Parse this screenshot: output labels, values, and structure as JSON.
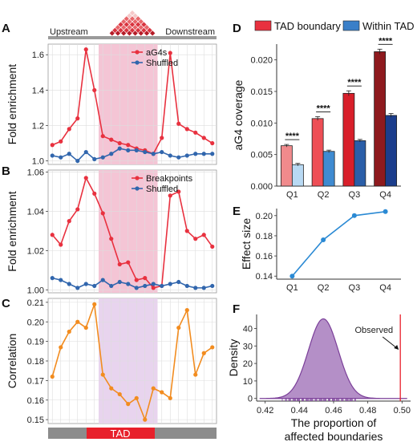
{
  "colors": {
    "red": "#e8313f",
    "blue": "#3166ad",
    "orange": "#f28c1f",
    "pink_band": "#f4c5d5",
    "purple_band": "#e8d4ee",
    "grid": "#dddddd",
    "tad_red": "#e8202b",
    "tad_gray": "#8c8c8c",
    "density_fill": "#a77bbd",
    "density_line": "#7b3f99"
  },
  "header": {
    "upstream": "Upstream",
    "downstream": "Downstream",
    "tad_label": "TAD"
  },
  "chart_data": [
    {
      "panel": "A",
      "type": "line",
      "ylabel": "Fold enrichment",
      "ylim": [
        0.98,
        1.66
      ],
      "yticks": [
        "1.0",
        "1.2",
        "1.4",
        "1.6"
      ],
      "ytick_values": [
        1.0,
        1.2,
        1.4,
        1.6
      ],
      "x": [
        1,
        2,
        3,
        4,
        5,
        6,
        7,
        8,
        9,
        10,
        11,
        12,
        13,
        14,
        15,
        16,
        17,
        18,
        19,
        20
      ],
      "shaded_x": [
        6.5,
        13.5
      ],
      "legend_position": "top-right",
      "series": [
        {
          "name": "aG4s",
          "color": "#e8313f",
          "values": [
            1.09,
            1.11,
            1.18,
            1.24,
            1.63,
            1.4,
            1.14,
            1.12,
            1.1,
            1.09,
            1.07,
            1.06,
            1.04,
            1.13,
            1.61,
            1.21,
            1.18,
            1.16,
            1.13,
            1.1
          ]
        },
        {
          "name": "Shuffled",
          "color": "#3166ad",
          "values": [
            1.03,
            1.02,
            1.04,
            1.0,
            1.05,
            1.01,
            1.02,
            1.04,
            1.07,
            1.06,
            1.06,
            1.05,
            1.04,
            1.05,
            1.03,
            1.02,
            1.03,
            1.04,
            1.04,
            1.04
          ]
        }
      ]
    },
    {
      "panel": "B",
      "type": "line",
      "ylabel": "Fold enrichment",
      "ylim": [
        0.9985,
        1.061
      ],
      "yticks": [
        "1.00",
        "1.02",
        "1.04",
        "1.06"
      ],
      "ytick_values": [
        1.0,
        1.02,
        1.04,
        1.06
      ],
      "x": [
        1,
        2,
        3,
        4,
        5,
        6,
        7,
        8,
        9,
        10,
        11,
        12,
        13,
        14,
        15,
        16,
        17,
        18,
        19,
        20
      ],
      "shaded_x": [
        6.5,
        13.5
      ],
      "legend_position": "top-right",
      "series": [
        {
          "name": "Breakpoints",
          "color": "#e8313f",
          "values": [
            1.028,
            1.023,
            1.035,
            1.041,
            1.057,
            1.049,
            1.039,
            1.026,
            1.013,
            1.014,
            1.005,
            1.006,
            1.001,
            1.002,
            1.048,
            1.05,
            1.03,
            1.026,
            1.028,
            1.022
          ]
        },
        {
          "name": "Shuffled",
          "color": "#3166ad",
          "values": [
            1.006,
            1.005,
            1.003,
            1.001,
            1.003,
            1.002,
            1.005,
            1.002,
            1.004,
            1.003,
            1.001,
            1.002,
            1.003,
            1.002,
            1.003,
            1.004,
            1.002,
            1.001,
            1.001,
            1.002
          ]
        }
      ]
    },
    {
      "panel": "C",
      "type": "line",
      "ylabel": "Correlation",
      "ylim": [
        0.148,
        0.212
      ],
      "yticks": [
        "0.15",
        "0.16",
        "0.17",
        "0.18",
        "0.19",
        "0.20",
        "0.21"
      ],
      "ytick_values": [
        0.15,
        0.16,
        0.17,
        0.18,
        0.19,
        0.2,
        0.21
      ],
      "x": [
        1,
        2,
        3,
        4,
        5,
        6,
        7,
        8,
        9,
        10,
        11,
        12,
        13,
        14,
        15,
        16,
        17,
        18,
        19,
        20
      ],
      "shaded_x": [
        6.5,
        13.5
      ],
      "series": [
        {
          "name": "",
          "color": "#f28c1f",
          "values": [
            0.172,
            0.187,
            0.195,
            0.2,
            0.197,
            0.209,
            0.173,
            0.166,
            0.163,
            0.158,
            0.161,
            0.15,
            0.166,
            0.164,
            0.161,
            0.197,
            0.206,
            0.173,
            0.184,
            0.187
          ]
        }
      ]
    },
    {
      "panel": "D",
      "type": "bar",
      "ylabel": "aG4 coverage",
      "categories": [
        "Q1",
        "Q2",
        "Q3",
        "Q4"
      ],
      "ylim": [
        0,
        0.0225
      ],
      "yticks": [
        "0.000",
        "0.005",
        "0.010",
        "0.015",
        "0.020"
      ],
      "ytick_values": [
        0,
        0.005,
        0.01,
        0.015,
        0.02
      ],
      "legend_position": "top",
      "significance": [
        "****",
        "****",
        "****",
        "****"
      ],
      "series": [
        {
          "name": "TAD boundary",
          "color": "#e8313f",
          "values": [
            0.0064,
            0.0107,
            0.0147,
            0.0213
          ],
          "errors": [
            0.0002,
            0.0003,
            0.0004,
            0.0004
          ],
          "bar_colors": [
            "#f08a8c",
            "#ee4e55",
            "#d81f2a",
            "#8e1a1e"
          ]
        },
        {
          "name": "Within TAD",
          "color": "#3a7fc8",
          "values": [
            0.0034,
            0.0055,
            0.0072,
            0.0112
          ],
          "errors": [
            0.0002,
            0.0002,
            0.0002,
            0.0003
          ],
          "bar_colors": [
            "#b8d9f3",
            "#3f8bd1",
            "#2a5ea8",
            "#1b3d8c"
          ]
        }
      ]
    },
    {
      "panel": "E",
      "type": "line",
      "ylabel": "Effect size",
      "categories": [
        "Q1",
        "Q2",
        "Q3",
        "Q4"
      ],
      "values": [
        0.14,
        0.176,
        0.2,
        0.204
      ],
      "ylim": [
        0.137,
        0.207
      ],
      "yticks": [
        "0.14",
        "0.16",
        "0.18",
        "0.20"
      ],
      "ytick_values": [
        0.14,
        0.16,
        0.18,
        0.2
      ],
      "color": "#2b8ad4"
    },
    {
      "panel": "F",
      "type": "area",
      "ylabel": "Density",
      "xlabel_line1": "The proportion of",
      "xlabel_line2": "affected boundaries",
      "xlim": [
        0.415,
        0.505
      ],
      "ylim": [
        -1.5,
        48
      ],
      "xticks": [
        "0.42",
        "0.44",
        "0.46",
        "0.48",
        "0.50"
      ],
      "xtick_values": [
        0.42,
        0.44,
        0.46,
        0.48,
        0.5
      ],
      "yticks": [
        "0",
        "10",
        "20",
        "30",
        "40"
      ],
      "ytick_values": [
        0,
        10,
        20,
        30,
        40
      ],
      "distribution": {
        "mean": 0.454,
        "sd": 0.0087,
        "peak": 45.5
      },
      "observed_value": 0.499,
      "observed_label": "Observed"
    }
  ]
}
